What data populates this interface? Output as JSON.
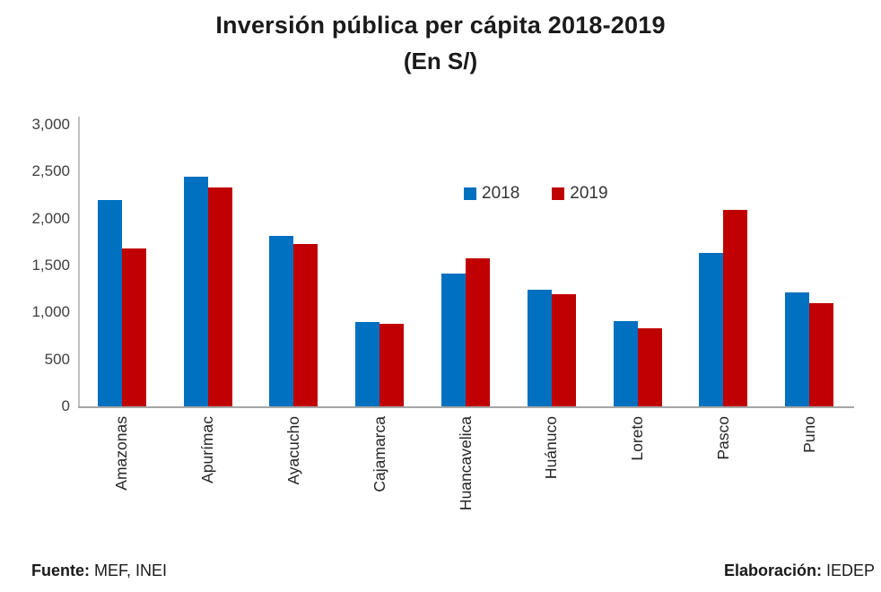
{
  "title": {
    "line1": "Inversión pública per cápita 2018-2019",
    "line2": "(En S/)"
  },
  "footer": {
    "source_label": "Fuente:",
    "source_value": " MEF, INEI",
    "elaboration_label": "Elaboración:",
    "elaboration_value": " IEDEP"
  },
  "colors": {
    "series_2018": "#0070C0",
    "series_2019": "#C00000",
    "axis_line": "#bfbfbf",
    "baseline": "#a6a6a6"
  },
  "chart_data": {
    "type": "bar",
    "title": "Inversión pública per cápita 2018-2019",
    "subtitle": "(En S/)",
    "categories": [
      "Amazonas",
      "Apurímac",
      "Ayacucho",
      "Cajamarca",
      "Huancavelica",
      "Huánuco",
      "Loreto",
      "Pasco",
      "Puno"
    ],
    "series": [
      {
        "name": "2018",
        "color": "#0070C0",
        "values": [
          2200,
          2450,
          1820,
          900,
          1410,
          1240,
          910,
          1630,
          1210
        ]
      },
      {
        "name": "2019",
        "color": "#C00000",
        "values": [
          1680,
          2330,
          1730,
          880,
          1580,
          1190,
          830,
          2090,
          1100
        ]
      }
    ],
    "xlabel": "",
    "ylabel": "",
    "ylim": [
      0,
      3000
    ],
    "yticks": [
      {
        "value": 0,
        "label": "0"
      },
      {
        "value": 500,
        "label": "500"
      },
      {
        "value": 1000,
        "label": "1,000"
      },
      {
        "value": 1500,
        "label": "1,500"
      },
      {
        "value": 2000,
        "label": "2,000"
      },
      {
        "value": 2500,
        "label": "2,500"
      },
      {
        "value": 3000,
        "label": "3,000"
      }
    ],
    "grid": false,
    "legend_position": "inside-top-center",
    "x_tick_rotation_deg": 90
  }
}
